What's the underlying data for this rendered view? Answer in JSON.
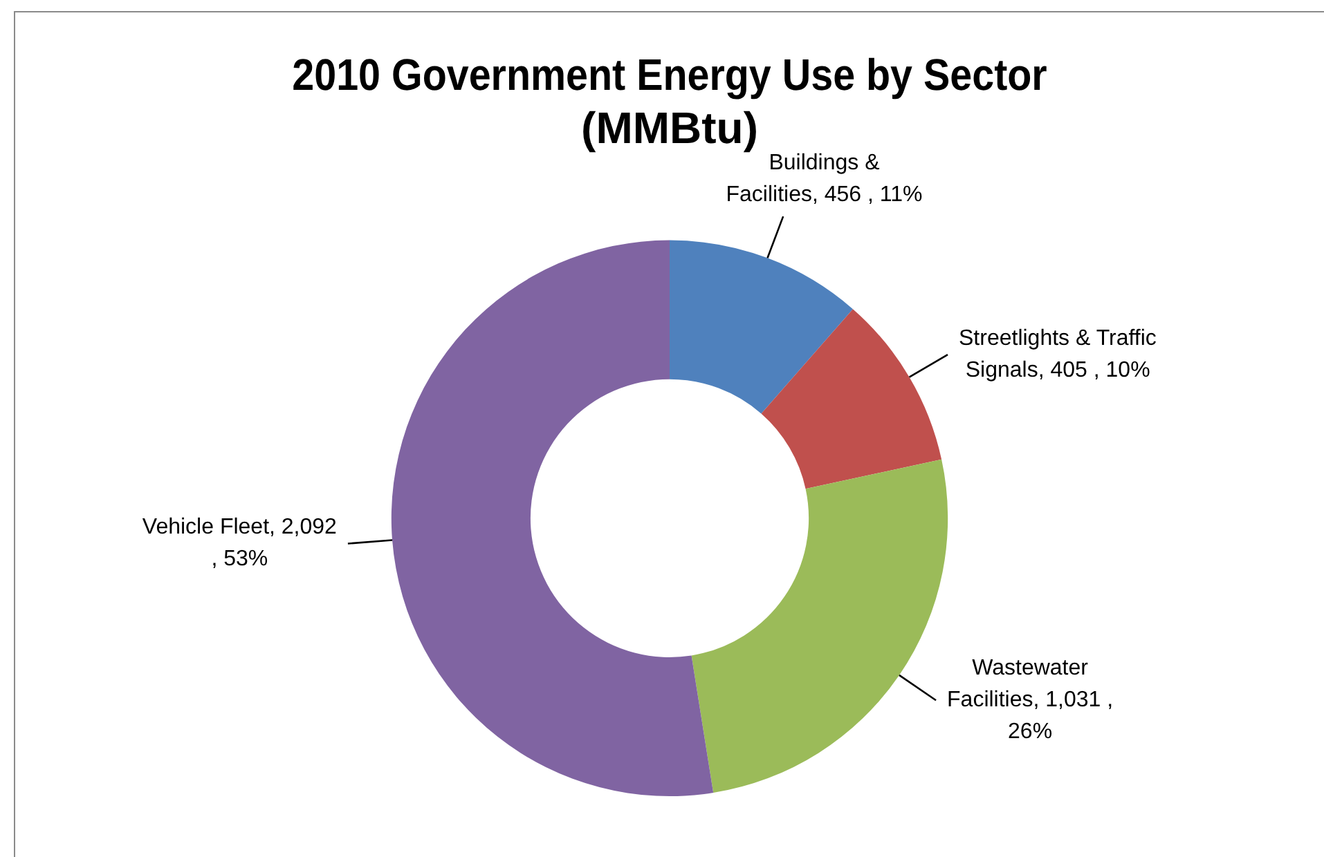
{
  "chart_data": {
    "type": "donut",
    "title": "2010 Government Energy Use by Sector (MMBtu)",
    "categories": [
      "Buildings & Facilities",
      "Streetlights & Traffic Signals",
      "Wastewater Facilities",
      "Vehicle Fleet"
    ],
    "values": [
      456,
      405,
      1031,
      2092
    ],
    "colors": [
      "#4f81bd",
      "#c0504d",
      "#9bbb59",
      "#8064a2"
    ],
    "value_labels": [
      ",  456 , 11%",
      ",  405 , 10%",
      ",  1,031 , 26%",
      " , 2,092 , 53%"
    ],
    "legend": false
  }
}
